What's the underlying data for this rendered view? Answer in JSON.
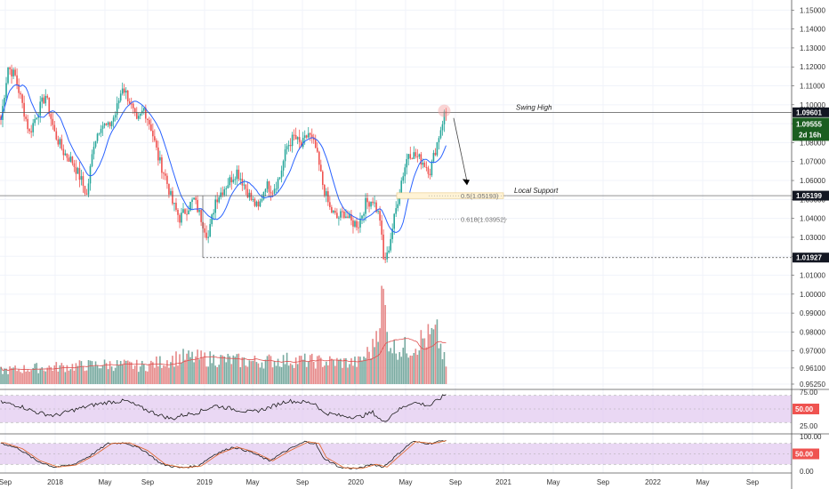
{
  "colors": {
    "up": "#26a69a",
    "down": "#ef5350",
    "ma": "#2962ff",
    "vol_up": "#78aaa0",
    "vol_down": "#e68888",
    "vol_ma": "#e05050",
    "osc_band": "#e1c8f0",
    "rsi_line": "#1c1c1c",
    "stoch_k": "#1c1c1c",
    "stoch_d": "#e06020",
    "last_price_tag": "#1b5e20",
    "level_tag": "#131722"
  },
  "chart_data": [
    {
      "type": "candlestick",
      "name": "price",
      "ylim": [
        0.9525,
        1.1525
      ],
      "y_ticks": [
        "1.15000",
        "1.14000",
        "1.13000",
        "1.12000",
        "1.11000",
        "1.10000",
        "1.09000",
        "1.08000",
        "1.07000",
        "1.06000",
        "1.05000",
        "1.04000",
        "1.03000",
        "1.02000",
        "1.01000",
        "1.00000",
        "0.99000",
        "0.98000",
        "0.97000",
        "0.96100",
        "0.95250"
      ],
      "x_ticks": [
        "Sep",
        "2018",
        "May",
        "Sep",
        "2019",
        "May",
        "Sep",
        "2020",
        "May",
        "Sep",
        "2021",
        "May",
        "Sep",
        "2022",
        "May",
        "Sep"
      ],
      "anchors": [
        [
          0,
          1.092
        ],
        [
          4,
          1.12
        ],
        [
          8,
          1.115
        ],
        [
          12,
          1.1
        ],
        [
          16,
          1.085
        ],
        [
          20,
          1.095
        ],
        [
          25,
          1.105
        ],
        [
          30,
          1.085
        ],
        [
          35,
          1.075
        ],
        [
          40,
          1.07
        ],
        [
          45,
          1.06
        ],
        [
          48,
          1.052
        ],
        [
          52,
          1.08
        ],
        [
          56,
          1.09
        ],
        [
          60,
          1.088
        ],
        [
          64,
          1.095
        ],
        [
          68,
          1.11
        ],
        [
          72,
          1.102
        ],
        [
          76,
          1.09
        ],
        [
          80,
          1.098
        ],
        [
          84,
          1.088
        ],
        [
          88,
          1.072
        ],
        [
          92,
          1.062
        ],
        [
          96,
          1.048
        ],
        [
          100,
          1.04
        ],
        [
          104,
          1.045
        ],
        [
          108,
          1.05
        ],
        [
          112,
          1.04
        ],
        [
          116,
          1.03
        ],
        [
          120,
          1.05
        ],
        [
          124,
          1.055
        ],
        [
          128,
          1.06
        ],
        [
          132,
          1.065
        ],
        [
          136,
          1.058
        ],
        [
          140,
          1.05
        ],
        [
          144,
          1.045
        ],
        [
          148,
          1.058
        ],
        [
          152,
          1.055
        ],
        [
          156,
          1.062
        ],
        [
          160,
          1.078
        ],
        [
          164,
          1.083
        ],
        [
          168,
          1.078
        ],
        [
          172,
          1.085
        ],
        [
          176,
          1.077
        ],
        [
          180,
          1.058
        ],
        [
          184,
          1.045
        ],
        [
          188,
          1.04
        ],
        [
          192,
          1.043
        ],
        [
          196,
          1.038
        ],
        [
          200,
          1.037
        ],
        [
          204,
          1.048
        ],
        [
          208,
          1.05
        ],
        [
          212,
          1.04
        ],
        [
          214,
          1.018
        ],
        [
          216,
          1.02
        ],
        [
          220,
          1.04
        ],
        [
          224,
          1.06
        ],
        [
          228,
          1.075
        ],
        [
          232,
          1.073
        ],
        [
          236,
          1.07
        ],
        [
          240,
          1.065
        ],
        [
          244,
          1.08
        ],
        [
          248,
          1.095
        ],
        [
          249,
          1.0955
        ]
      ],
      "last_value": "1.09555",
      "countdown": "2d 16h",
      "levels": [
        {
          "label": "Swing High",
          "value": 1.096,
          "tag": "1.09601"
        },
        {
          "label": "Local Support",
          "value": 1.052,
          "tag": "1.05199"
        },
        {
          "label": "",
          "value": 1.0193,
          "tag": "1.01927"
        }
      ],
      "fibs": [
        {
          "label": "0.5(1.05193)",
          "value": 1.05193
        },
        {
          "label": "0.618(1.03952)",
          "value": 1.03952
        }
      ]
    },
    {
      "type": "bar",
      "name": "volume",
      "scale": "relative",
      "anchors": [
        [
          0,
          0.15
        ],
        [
          20,
          0.18
        ],
        [
          40,
          0.2
        ],
        [
          60,
          0.22
        ],
        [
          80,
          0.2
        ],
        [
          100,
          0.3
        ],
        [
          120,
          0.28
        ],
        [
          140,
          0.25
        ],
        [
          160,
          0.27
        ],
        [
          180,
          0.25
        ],
        [
          200,
          0.24
        ],
        [
          208,
          0.4
        ],
        [
          212,
          0.8
        ],
        [
          214,
          1.0
        ],
        [
          216,
          0.55
        ],
        [
          220,
          0.4
        ],
        [
          228,
          0.4
        ],
        [
          236,
          0.5
        ],
        [
          244,
          0.55
        ],
        [
          249,
          0.2
        ]
      ]
    },
    {
      "type": "line",
      "name": "rsi",
      "ylim": [
        25,
        75
      ],
      "y_ticks": [
        "75.00",
        "25.00"
      ],
      "tag": "50.00",
      "band": [
        70,
        30
      ],
      "anchors": [
        [
          0,
          60
        ],
        [
          10,
          55
        ],
        [
          20,
          45
        ],
        [
          30,
          40
        ],
        [
          40,
          48
        ],
        [
          50,
          55
        ],
        [
          60,
          60
        ],
        [
          70,
          62
        ],
        [
          80,
          50
        ],
        [
          90,
          40
        ],
        [
          96,
          35
        ],
        [
          100,
          40
        ],
        [
          110,
          45
        ],
        [
          120,
          55
        ],
        [
          130,
          50
        ],
        [
          140,
          45
        ],
        [
          150,
          52
        ],
        [
          160,
          62
        ],
        [
          170,
          60
        ],
        [
          176,
          58
        ],
        [
          180,
          45
        ],
        [
          190,
          40
        ],
        [
          200,
          38
        ],
        [
          208,
          45
        ],
        [
          214,
          30
        ],
        [
          220,
          45
        ],
        [
          230,
          60
        ],
        [
          240,
          55
        ],
        [
          249,
          72
        ]
      ]
    },
    {
      "type": "line",
      "name": "stochastic",
      "ylim": [
        0,
        100
      ],
      "y_ticks": [
        "100.00",
        "0.00"
      ],
      "tag": "50.00",
      "band": [
        80,
        20
      ],
      "anchors": [
        [
          0,
          82
        ],
        [
          10,
          65
        ],
        [
          20,
          30
        ],
        [
          30,
          12
        ],
        [
          40,
          18
        ],
        [
          50,
          45
        ],
        [
          60,
          80
        ],
        [
          70,
          82
        ],
        [
          80,
          60
        ],
        [
          90,
          20
        ],
        [
          100,
          10
        ],
        [
          110,
          15
        ],
        [
          120,
          50
        ],
        [
          130,
          70
        ],
        [
          140,
          55
        ],
        [
          150,
          30
        ],
        [
          160,
          60
        ],
        [
          170,
          85
        ],
        [
          176,
          80
        ],
        [
          180,
          40
        ],
        [
          190,
          10
        ],
        [
          200,
          8
        ],
        [
          208,
          20
        ],
        [
          214,
          12
        ],
        [
          220,
          40
        ],
        [
          230,
          85
        ],
        [
          240,
          80
        ],
        [
          249,
          90
        ]
      ]
    }
  ]
}
